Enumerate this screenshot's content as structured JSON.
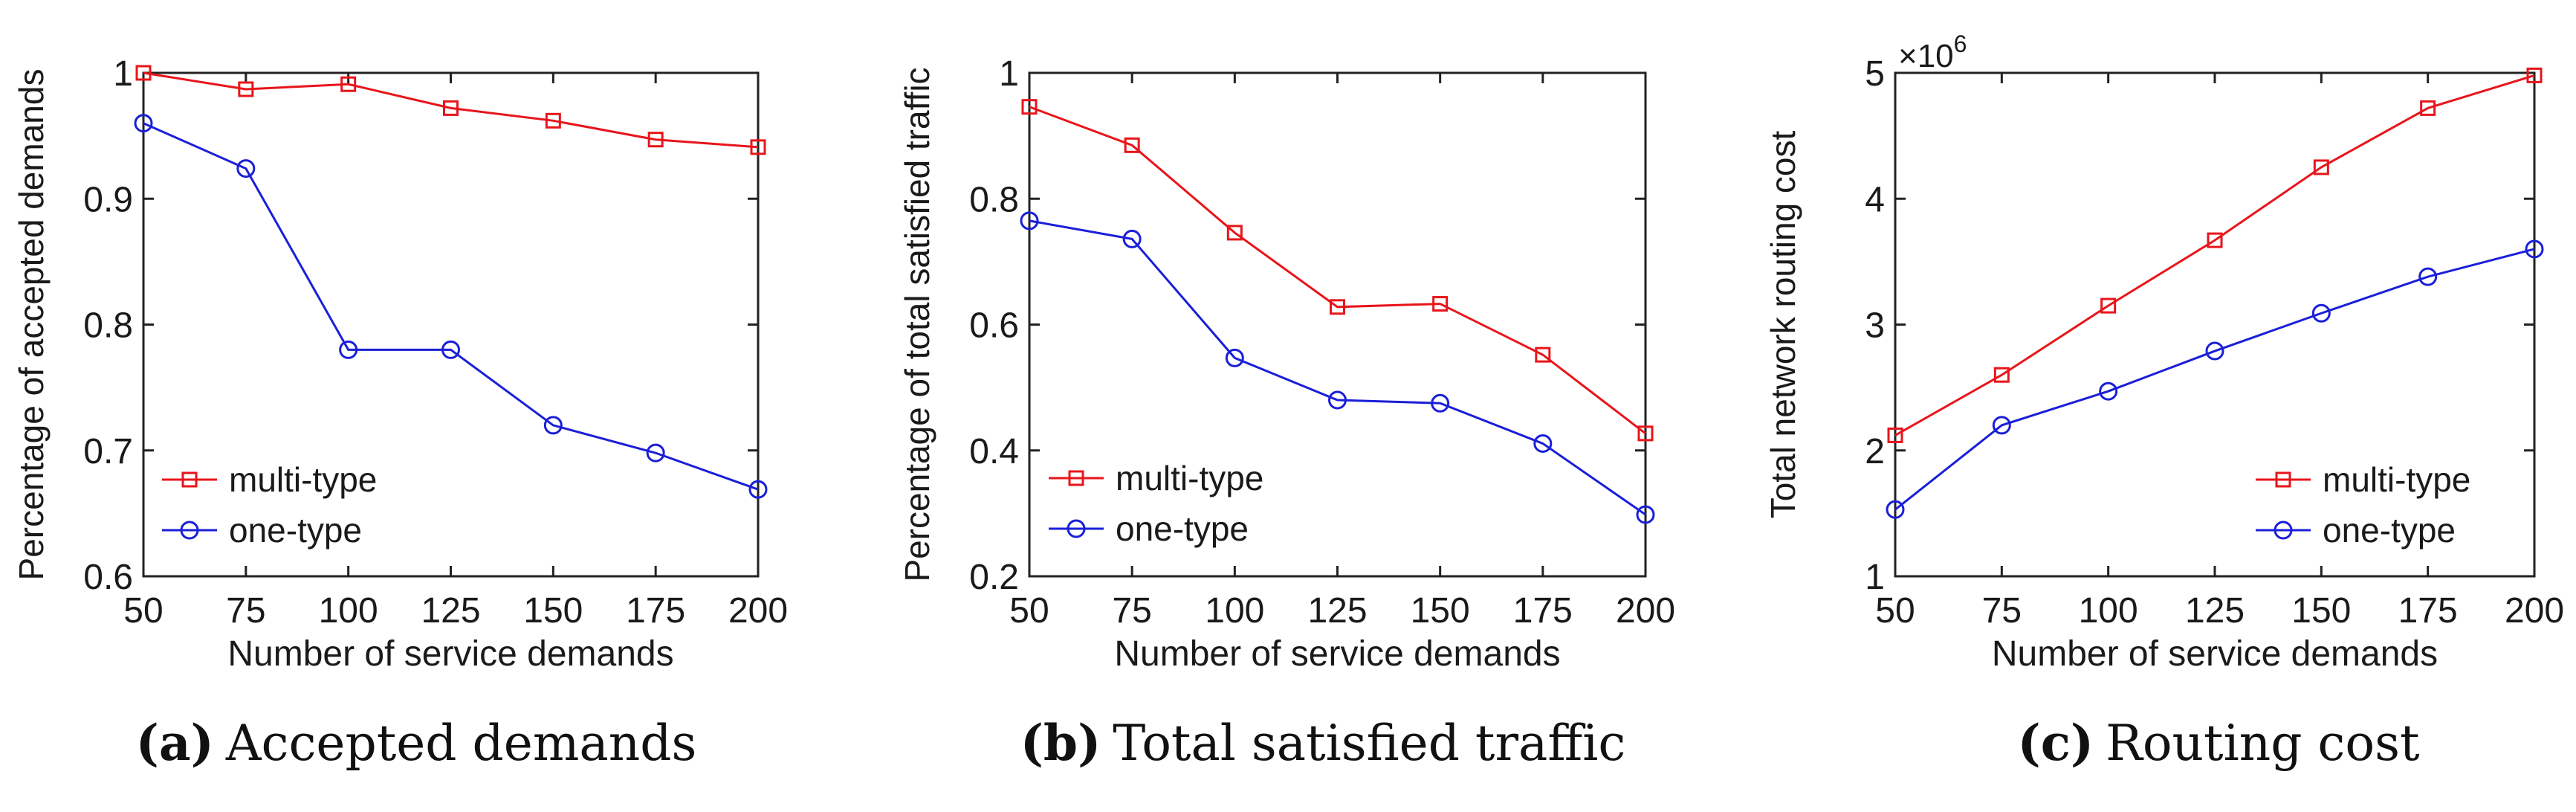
{
  "chart_data": [
    {
      "type": "line",
      "panel": "a",
      "caption_letter": "(a)",
      "caption_text": "Accepted demands",
      "xlabel": "Number of service demands",
      "ylabel": "Percentage of accepted demands",
      "x": [
        50,
        75,
        100,
        125,
        150,
        175,
        200
      ],
      "xticks": [
        "50",
        "75",
        "100",
        "125",
        "150",
        "175",
        "200"
      ],
      "ylim": [
        0.6,
        1.0
      ],
      "yticks": [
        0.6,
        0.7,
        0.8,
        0.9,
        1.0
      ],
      "ytick_labels": [
        "0.6",
        "0.7",
        "0.8",
        "0.9",
        "1"
      ],
      "exponent_label": "",
      "legend_position": "lower-left",
      "series": [
        {
          "name": "multi-type",
          "color": "#e8151b",
          "marker": "square",
          "values": [
            1.0,
            0.987,
            0.991,
            0.972,
            0.962,
            0.947,
            0.941
          ]
        },
        {
          "name": "one-type",
          "color": "#1a1fd8",
          "marker": "circle",
          "values": [
            0.96,
            0.924,
            0.78,
            0.78,
            0.72,
            0.698,
            0.669
          ]
        }
      ]
    },
    {
      "type": "line",
      "panel": "b",
      "caption_letter": "(b)",
      "caption_text": "Total satisfied traffic",
      "xlabel": "Number of service demands",
      "ylabel": "Percentage of total satisfied traffic",
      "x": [
        50,
        75,
        100,
        125,
        150,
        175,
        200
      ],
      "xticks": [
        "50",
        "75",
        "100",
        "125",
        "150",
        "175",
        "200"
      ],
      "ylim": [
        0.2,
        1.0
      ],
      "yticks": [
        0.2,
        0.4,
        0.6,
        0.8,
        1.0
      ],
      "ytick_labels": [
        "0.2",
        "0.4",
        "0.6",
        "0.8",
        "1"
      ],
      "exponent_label": "",
      "legend_position": "lower-left",
      "series": [
        {
          "name": "multi-type",
          "color": "#e8151b",
          "marker": "square",
          "values": [
            0.946,
            0.885,
            0.746,
            0.628,
            0.633,
            0.552,
            0.427
          ]
        },
        {
          "name": "one-type",
          "color": "#1a1fd8",
          "marker": "circle",
          "values": [
            0.765,
            0.736,
            0.547,
            0.48,
            0.475,
            0.411,
            0.298
          ]
        }
      ]
    },
    {
      "type": "line",
      "panel": "c",
      "caption_letter": "(c)",
      "caption_text": "Routing cost",
      "xlabel": "Number of service demands",
      "ylabel": "Total network routing cost",
      "x": [
        50,
        75,
        100,
        125,
        150,
        175,
        200
      ],
      "xticks": [
        "50",
        "75",
        "100",
        "125",
        "150",
        "175",
        "200"
      ],
      "ylim": [
        1,
        5
      ],
      "yticks": [
        1,
        2,
        3,
        4,
        5
      ],
      "ytick_labels": [
        "1",
        "2",
        "3",
        "4",
        "5"
      ],
      "exponent_label": "×10",
      "exponent_power": "6",
      "legend_position": "lower-right",
      "series": [
        {
          "name": "multi-type",
          "color": "#e8151b",
          "marker": "square",
          "values": [
            2.12,
            2.6,
            3.15,
            3.67,
            4.25,
            4.72,
            4.98
          ]
        },
        {
          "name": "one-type",
          "color": "#1a1fd8",
          "marker": "circle",
          "values": [
            1.53,
            2.2,
            2.47,
            2.79,
            3.09,
            3.38,
            3.6
          ]
        }
      ]
    }
  ]
}
